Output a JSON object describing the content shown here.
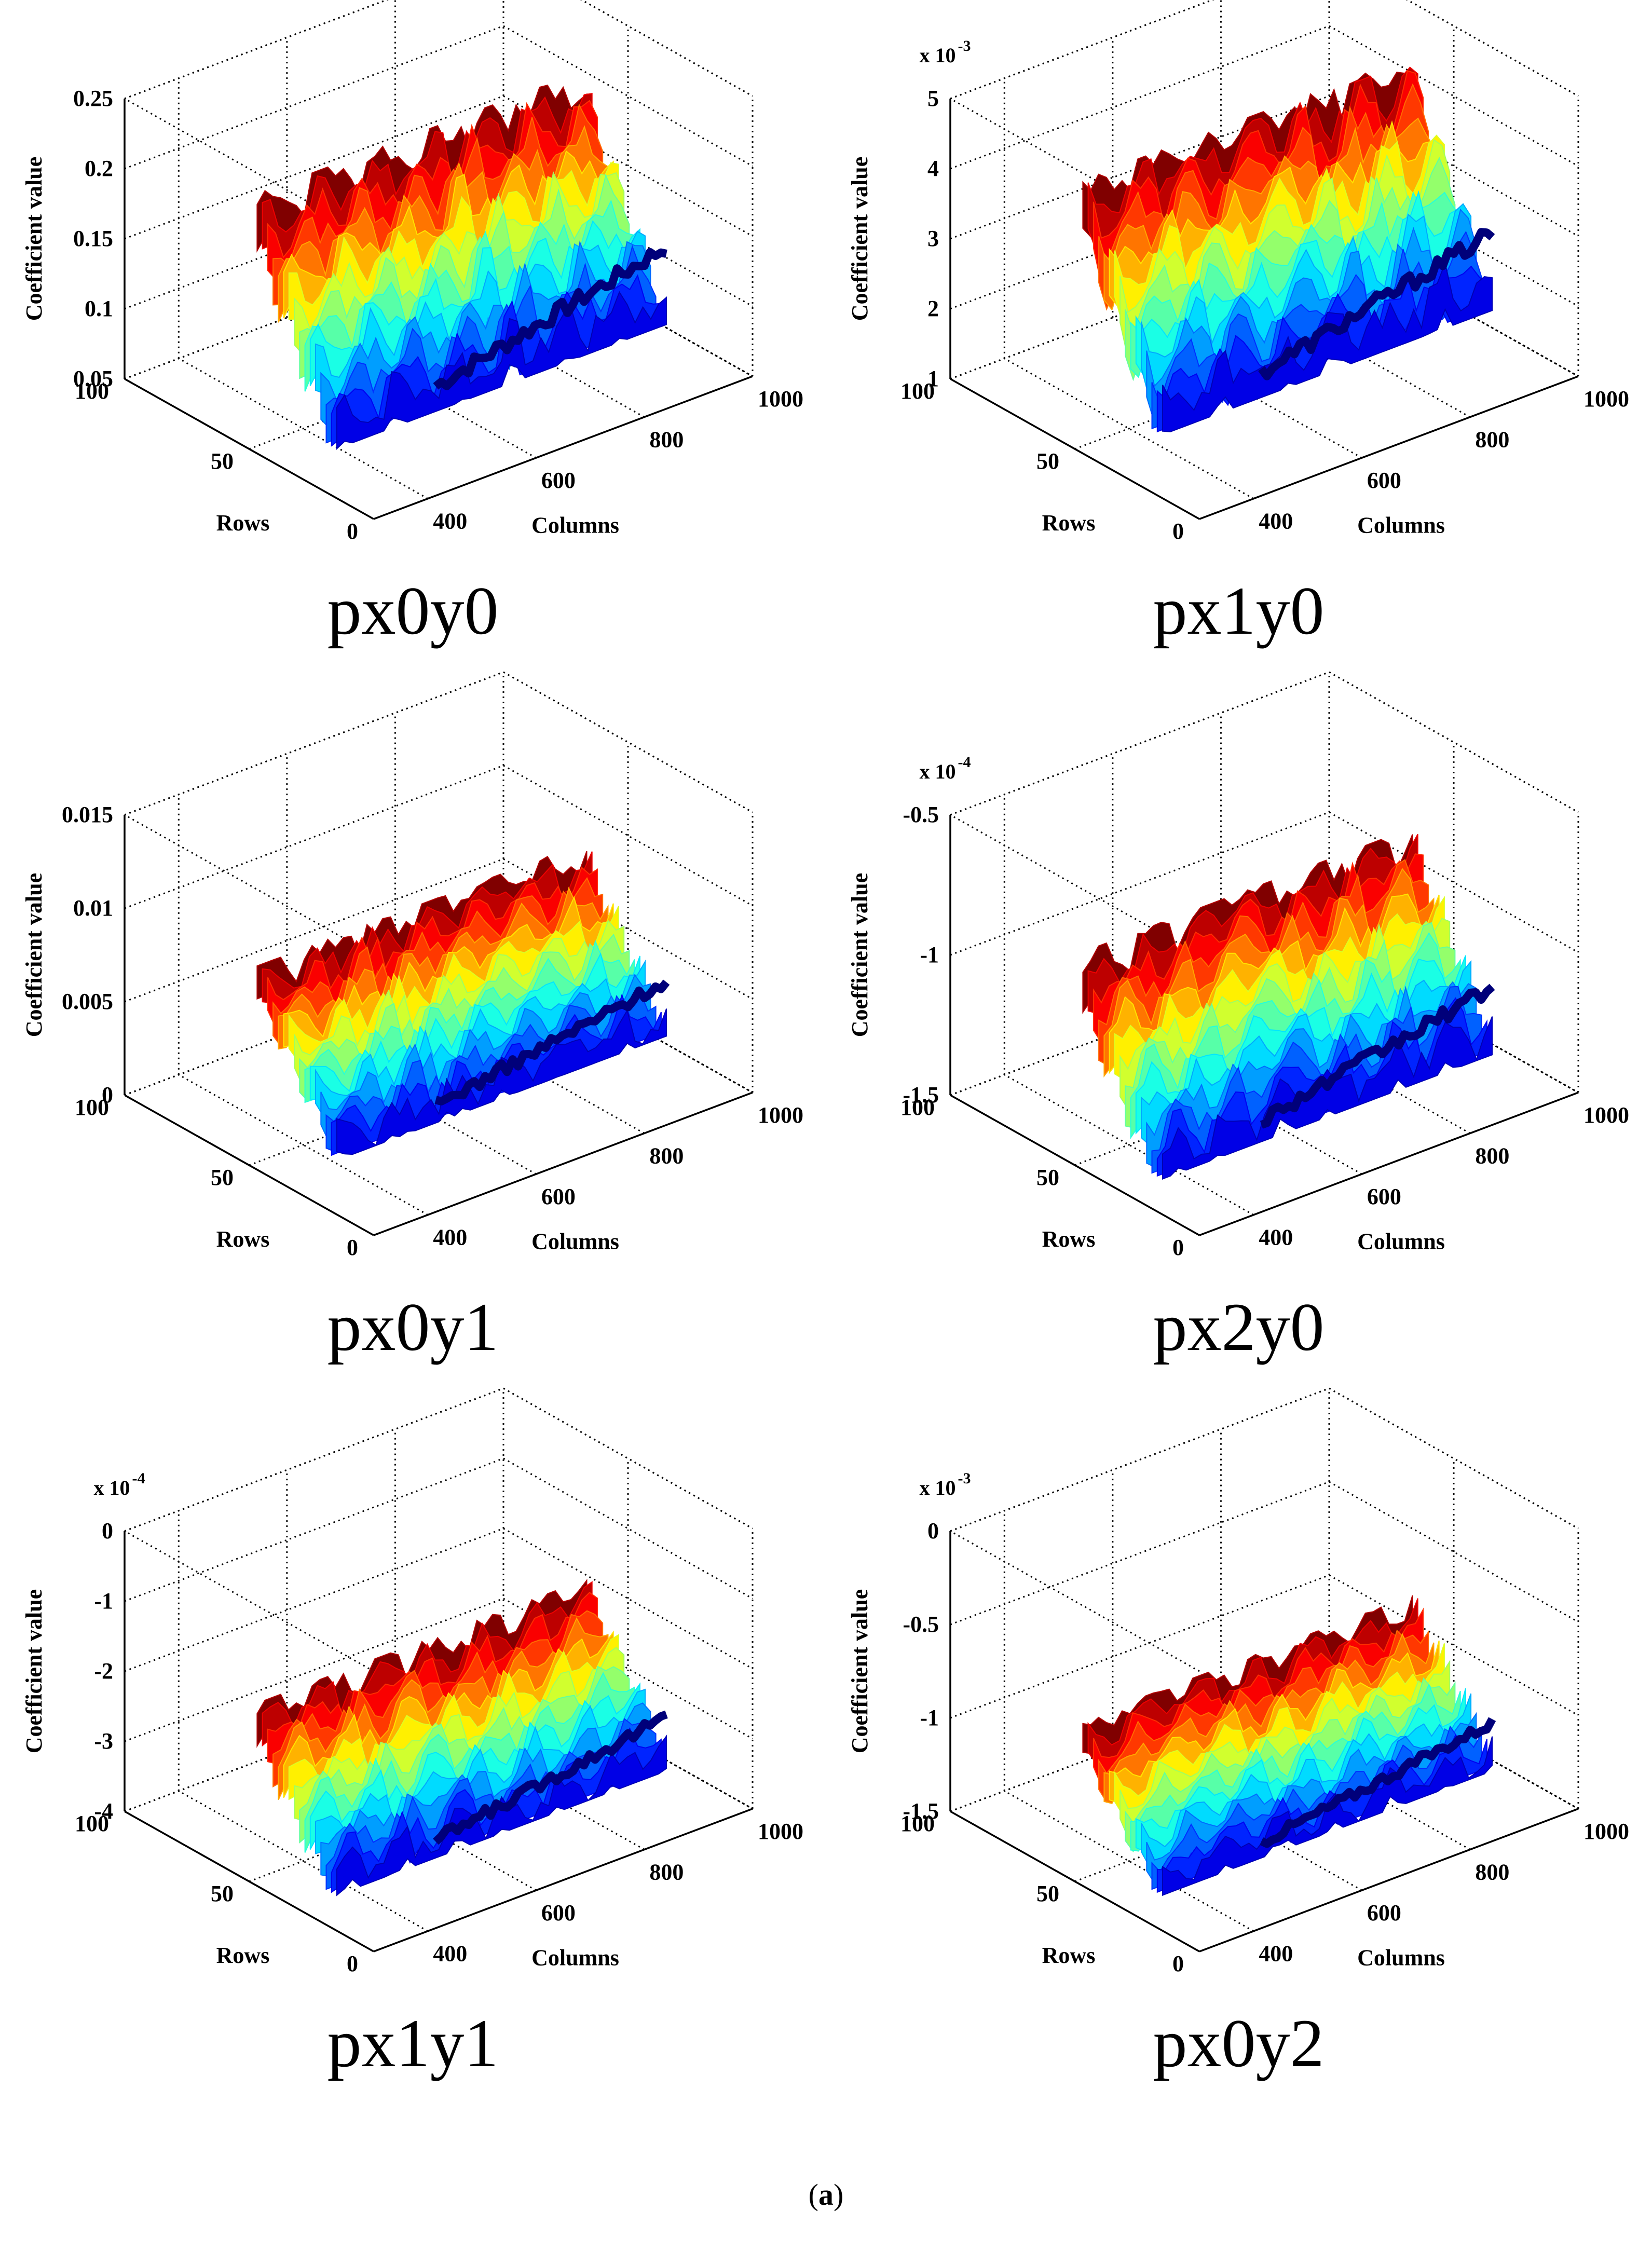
{
  "figure_label": {
    "open": "(",
    "letter": "a",
    "close": ")"
  },
  "chart_data": [
    {
      "type": "surface3d",
      "id": "px0y0",
      "title": "px0y0",
      "zlabel": "Coefficient value",
      "xlabel": "Columns",
      "ylabel": "Rows",
      "exponent": null,
      "zticks": [
        "0.05",
        "0.1",
        "0.15",
        "0.2",
        "0.25"
      ],
      "zlim": [
        0.05,
        0.25
      ],
      "xticks": [
        "400",
        "600",
        "800",
        "1000"
      ],
      "xlim": [
        300,
        1000
      ],
      "yticks": [
        "0",
        "50",
        "100"
      ],
      "ylim": [
        0,
        100
      ],
      "surface": {
        "z_min": 0.06,
        "z_max": 0.21,
        "colormap": "jet"
      }
    },
    {
      "type": "surface3d",
      "id": "px1y0",
      "title": "px1y0",
      "zlabel": "Coefficient value",
      "xlabel": "Columns",
      "ylabel": "Rows",
      "exponent": {
        "base": "x 10",
        "power": "-3"
      },
      "zticks": [
        "1",
        "2",
        "3",
        "4",
        "5"
      ],
      "zlim": [
        1,
        5
      ],
      "xticks": [
        "400",
        "600",
        "800",
        "1000"
      ],
      "xlim": [
        300,
        1000
      ],
      "yticks": [
        "0",
        "50",
        "100"
      ],
      "ylim": [
        0,
        100
      ],
      "surface": {
        "z_min": 1.4,
        "z_max": 4.4,
        "colormap": "jet"
      }
    },
    {
      "type": "surface3d",
      "id": "px0y1",
      "title": "px0y1",
      "zlabel": "Coefficient value",
      "xlabel": "Columns",
      "ylabel": "Rows",
      "exponent": null,
      "zticks": [
        "0",
        "0.005",
        "0.01",
        "0.015"
      ],
      "zlim": [
        0,
        0.015
      ],
      "xticks": [
        "400",
        "600",
        "800",
        "1000"
      ],
      "xlim": [
        300,
        1000
      ],
      "yticks": [
        "0",
        "50",
        "100"
      ],
      "ylim": [
        0,
        100
      ],
      "surface": {
        "z_min": 0.001,
        "z_max": 0.009,
        "colormap": "jet"
      }
    },
    {
      "type": "surface3d",
      "id": "px2y0",
      "title": "px2y0",
      "zlabel": "Coefficient value",
      "xlabel": "Columns",
      "ylabel": "Rows",
      "exponent": {
        "base": "x 10",
        "power": "-4"
      },
      "zticks": [
        "-1.5",
        "-1",
        "-0.5"
      ],
      "zlim": [
        -1.5,
        -0.5
      ],
      "xticks": [
        "400",
        "600",
        "800",
        "1000"
      ],
      "xlim": [
        300,
        1000
      ],
      "yticks": [
        "0",
        "50",
        "100"
      ],
      "ylim": [
        0,
        100
      ],
      "surface": {
        "z_min": -1.5,
        "z_max": -0.85,
        "colormap": "jet"
      }
    },
    {
      "type": "surface3d",
      "id": "px1y1",
      "title": "px1y1",
      "zlabel": "Coefficient value",
      "xlabel": "Columns",
      "ylabel": "Rows",
      "exponent": {
        "base": "x 10",
        "power": "-4"
      },
      "zticks": [
        "-4",
        "-3",
        "-2",
        "-1",
        "0"
      ],
      "zlim": [
        -4,
        0
      ],
      "xticks": [
        "400",
        "600",
        "800",
        "1000"
      ],
      "xlim": [
        300,
        1000
      ],
      "yticks": [
        "0",
        "50",
        "100"
      ],
      "ylim": [
        0,
        100
      ],
      "surface": {
        "z_min": -4.0,
        "z_max": -1.9,
        "colormap": "jet"
      }
    },
    {
      "type": "surface3d",
      "id": "px0y2",
      "title": "px0y2",
      "zlabel": "Coefficient value",
      "xlabel": "Columns",
      "ylabel": "Rows",
      "exponent": {
        "base": "x 10",
        "power": "-3"
      },
      "zticks": [
        "-1.5",
        "-1",
        "-0.5",
        "0"
      ],
      "zlim": [
        -1.5,
        0
      ],
      "xticks": [
        "400",
        "600",
        "800",
        "1000"
      ],
      "xlim": [
        300,
        1000
      ],
      "yticks": [
        "0",
        "50",
        "100"
      ],
      "ylim": [
        0,
        100
      ],
      "surface": {
        "z_min": -1.5,
        "z_max": -0.8,
        "colormap": "jet"
      }
    }
  ]
}
